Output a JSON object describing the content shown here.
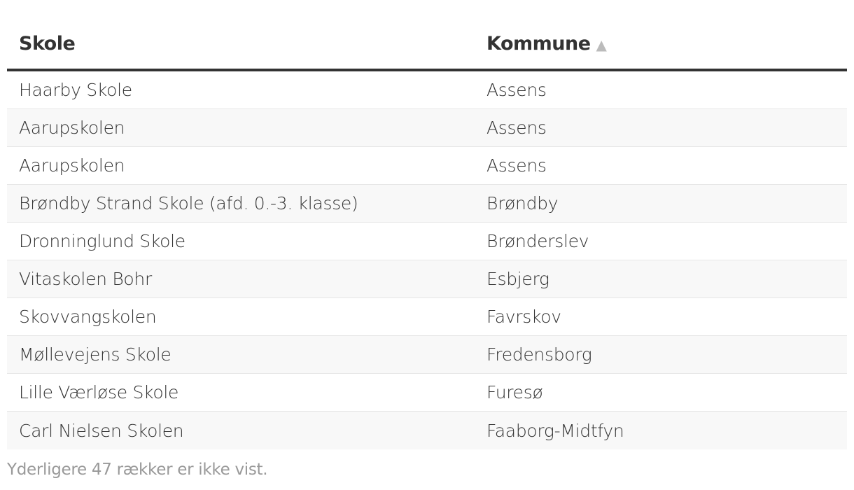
{
  "table": {
    "columns": [
      {
        "label": "Skole"
      },
      {
        "label": "Kommune",
        "sort": "ascending",
        "sort_icon": "▲"
      }
    ],
    "rows": [
      [
        "Haarby Skole",
        "Assens"
      ],
      [
        "Aarupskolen",
        "Assens"
      ],
      [
        "Aarupskolen",
        "Assens"
      ],
      [
        "Brøndby Strand Skole (afd. 0.-3. klasse)",
        "Brøndby"
      ],
      [
        "Dronninglund Skole",
        "Brønderslev"
      ],
      [
        "Vitaskolen Bohr",
        "Esbjerg"
      ],
      [
        "Skovvangskolen",
        "Favrskov"
      ],
      [
        "Møllevejens Skole",
        "Fredensborg"
      ],
      [
        "Lille Værløse Skole",
        "Furesø"
      ],
      [
        "Carl Nielsen Skolen",
        "Faaborg-Midtfyn"
      ]
    ]
  },
  "footer": {
    "note": "Yderligere 47 rækker er ikke vist."
  },
  "colors": {
    "header_rule": "#333333",
    "stripe": "#f8f8f8",
    "muted": "#999999"
  }
}
